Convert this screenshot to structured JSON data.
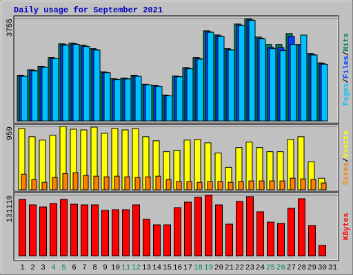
{
  "chart_data": [
    {
      "type": "bar",
      "title": "Daily usage for September 2021",
      "legend_separator": "/",
      "categories": [
        "1",
        "2",
        "3",
        "4",
        "5",
        "6",
        "7",
        "8",
        "9",
        "10",
        "11",
        "12",
        "13",
        "14",
        "15",
        "16",
        "17",
        "18",
        "19",
        "20",
        "21",
        "22",
        "23",
        "24",
        "25",
        "26",
        "27",
        "28",
        "29",
        "30",
        "31"
      ],
      "ylim": [
        0,
        3755
      ],
      "yticks": [
        3755
      ],
      "series": [
        {
          "name": "Hits",
          "color": "#00805c",
          "values": [
            1677,
            1878,
            2003,
            2328,
            2829,
            2854,
            2779,
            2654,
            1802,
            1552,
            1577,
            1677,
            1352,
            1302,
            951,
            1652,
            1953,
            2328,
            3305,
            3154,
            2654,
            3555,
            3755,
            3079,
            2804,
            2804,
            3204,
            2804,
            2478,
            2128,
            null
          ]
        },
        {
          "name": "Files",
          "color": "#0040ff",
          "values": [
            1650,
            1850,
            1980,
            2300,
            2800,
            2830,
            2750,
            2620,
            1780,
            1530,
            1550,
            1650,
            1330,
            1280,
            930,
            1630,
            1930,
            2290,
            3270,
            3120,
            2620,
            3520,
            3710,
            3040,
            2700,
            2690,
            3100,
            2780,
            2440,
            2100,
            null
          ]
        },
        {
          "name": "Pages",
          "color": "#00c0ff",
          "values": [
            1640,
            1840,
            1970,
            2290,
            2780,
            2810,
            2730,
            2600,
            1770,
            1520,
            1540,
            1640,
            1320,
            1270,
            920,
            1620,
            1920,
            2270,
            3250,
            3100,
            2600,
            3500,
            3690,
            3010,
            2654,
            2580,
            2804,
            3150,
            2420,
            2080,
            null
          ]
        }
      ]
    },
    {
      "type": "bar",
      "categories": [
        "1",
        "2",
        "3",
        "4",
        "5",
        "6",
        "7",
        "8",
        "9",
        "10",
        "11",
        "12",
        "13",
        "14",
        "15",
        "16",
        "17",
        "18",
        "19",
        "20",
        "21",
        "22",
        "23",
        "24",
        "25",
        "26",
        "27",
        "28",
        "29",
        "30",
        "31"
      ],
      "ylim": [
        0,
        959
      ],
      "yticks": [
        959
      ],
      "series": [
        {
          "name": "Visits",
          "color": "#ffff00",
          "values": [
            928,
            804,
            753,
            825,
            959,
            918,
            907,
            949,
            856,
            928,
            907,
            928,
            804,
            742,
            577,
            598,
            753,
            763,
            711,
            557,
            340,
            639,
            722,
            639,
            577,
            577,
            763,
            804,
            423,
            175,
            null
          ]
        },
        {
          "name": "Sites",
          "color": "#ff8000",
          "values": [
            237,
            155,
            113,
            186,
            247,
            258,
            217,
            206,
            196,
            206,
            196,
            186,
            196,
            206,
            155,
            124,
            124,
            113,
            124,
            124,
            113,
            124,
            134,
            134,
            134,
            134,
            175,
            165,
            155,
            103,
            null
          ]
        }
      ]
    },
    {
      "type": "bar",
      "categories": [
        "1",
        "2",
        "3",
        "4",
        "5",
        "6",
        "7",
        "8",
        "9",
        "10",
        "11",
        "12",
        "13",
        "14",
        "15",
        "16",
        "17",
        "18",
        "19",
        "20",
        "21",
        "22",
        "23",
        "24",
        "25",
        "26",
        "27",
        "28",
        "29",
        "30",
        "31"
      ],
      "category_colors": [
        "#000000",
        "#000000",
        "#000000",
        "#00805c",
        "#00805c",
        "#000000",
        "#000000",
        "#000000",
        "#000000",
        "#000000",
        "#00805c",
        "#00805c",
        "#000000",
        "#000000",
        "#000000",
        "#000000",
        "#000000",
        "#00805c",
        "#00805c",
        "#000000",
        "#000000",
        "#000000",
        "#000000",
        "#000000",
        "#00805c",
        "#00805c",
        "#000000",
        "#000000",
        "#000000",
        "#000000",
        "#000000"
      ],
      "ylim": [
        0,
        131110
      ],
      "yticks": [
        131110
      ],
      "series": [
        {
          "name": "KBytes",
          "color": "#ff0000",
          "values": [
            122170,
            110250,
            105780,
            113230,
            122170,
            111740,
            110250,
            110250,
            98330,
            99820,
            99820,
            110250,
            78960,
            67050,
            67050,
            104290,
            116210,
            126640,
            131110,
            110250,
            68530,
            117700,
            128130,
            95350,
            73000,
            70020,
            102800,
            123660,
            65550,
            22350,
            null
          ]
        }
      ]
    }
  ]
}
